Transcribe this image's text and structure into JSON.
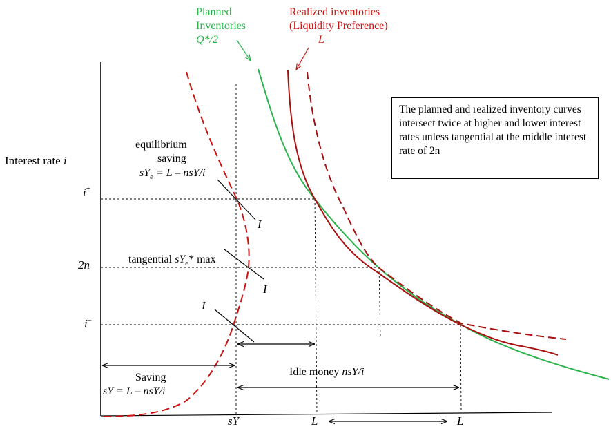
{
  "colors": {
    "planned": "#2bb24c",
    "realized": "#cc1111",
    "axes": "#000000"
  },
  "top_labels": {
    "planned_line1": "Planned",
    "planned_line2": "Inventories",
    "planned_line3": "Q*/2",
    "realized_line1": "Realized inventories",
    "realized_line2": "(Liquidity Preference)",
    "realized_line3": "L"
  },
  "axis": {
    "y_label": "Interest rate ",
    "y_label_var": "i",
    "ticks": {
      "i_plus_base": "i",
      "i_plus_sup": "+",
      "two_n": "2n",
      "i_minus_base": "i",
      "i_minus_sup": "–"
    },
    "x_ticks": {
      "sY": "sY",
      "L1": "L",
      "L2": "L"
    }
  },
  "annotations": {
    "eq_line1": "equilibrium",
    "eq_line2": "saving",
    "eq_formula_a": "sY",
    "eq_formula_sub": "e",
    "eq_formula_b": " = L – nsY/i",
    "tangential_a": "tangential ",
    "tangential_b": "sY",
    "tangential_sub": "e",
    "tangential_c": "* max",
    "I1": "I",
    "I2": "I",
    "I3": "I",
    "saving_label": "Saving",
    "saving_formula": "sY = L – nsY/i",
    "idle_money_a": "Idle money ",
    "idle_money_b": "nsY/i"
  },
  "note": "The planned and realized inventory curves intersect twice at higher and lower interest rates unless tangential at the middle interest rate of 2n"
}
